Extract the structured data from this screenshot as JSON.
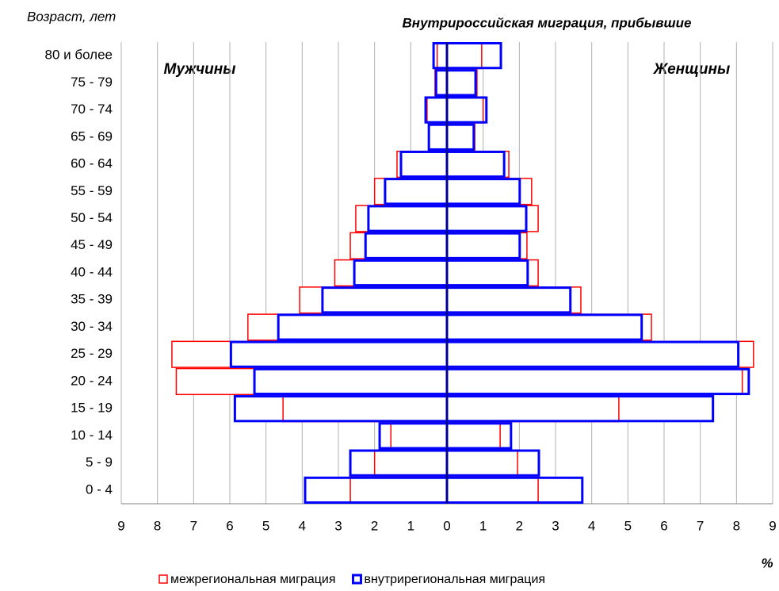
{
  "chart_data": {
    "type": "pyramid",
    "title": "Внутрироссийская миграция, прибывшие",
    "y_axis_label": "Возраст, лет",
    "x_axis_label": "%",
    "left_label": "Мужчины",
    "right_label": "Женщины",
    "categories": [
      "0 - 4",
      "5 - 9",
      "10 - 14",
      "15 - 19",
      "20 - 24",
      "25 - 29",
      "30 - 34",
      "35 - 39",
      "40 - 44",
      "45 - 49",
      "50 - 54",
      "55 - 59",
      "60 - 64",
      "65 - 69",
      "70 - 74",
      "75 - 79",
      "80 и более"
    ],
    "series": [
      {
        "name": "межрегиональная миграция",
        "color": "#ff0000",
        "male": [
          -2.67,
          -2.0,
          -1.55,
          -4.53,
          -7.48,
          -7.6,
          -5.5,
          -4.07,
          -3.1,
          -2.67,
          -2.52,
          -2.0,
          -1.38,
          -0.5,
          -0.55,
          -0.33,
          -0.27
        ],
        "female": [
          2.52,
          1.95,
          1.47,
          4.75,
          8.16,
          8.47,
          5.65,
          3.7,
          2.52,
          2.21,
          2.52,
          2.34,
          1.71,
          0.77,
          1.0,
          0.83,
          0.96
        ]
      },
      {
        "name": "внутрирегиональная миграция",
        "color": "#0000ff",
        "male": [
          -3.92,
          -2.67,
          -1.86,
          -5.86,
          -5.32,
          -5.97,
          -4.66,
          -3.44,
          -2.56,
          -2.25,
          -2.17,
          -1.71,
          -1.27,
          -0.5,
          -0.59,
          -0.3,
          -0.37
        ],
        "female": [
          3.74,
          2.54,
          1.77,
          7.35,
          8.34,
          8.05,
          5.38,
          3.41,
          2.23,
          2.01,
          2.19,
          2.01,
          1.58,
          0.74,
          1.09,
          0.79,
          1.49
        ]
      }
    ],
    "xlim": [
      -9,
      9
    ],
    "xticks": [
      {
        "value": -9,
        "label": "9"
      },
      {
        "value": -8,
        "label": "8"
      },
      {
        "value": -7,
        "label": "7"
      },
      {
        "value": -6,
        "label": "6"
      },
      {
        "value": -5,
        "label": "5"
      },
      {
        "value": -4,
        "label": "4"
      },
      {
        "value": -3,
        "label": "3"
      },
      {
        "value": -2,
        "label": "2"
      },
      {
        "value": -1,
        "label": "1"
      },
      0,
      1,
      2,
      3,
      4,
      5,
      6,
      7,
      8,
      9
    ],
    "grid": true
  }
}
